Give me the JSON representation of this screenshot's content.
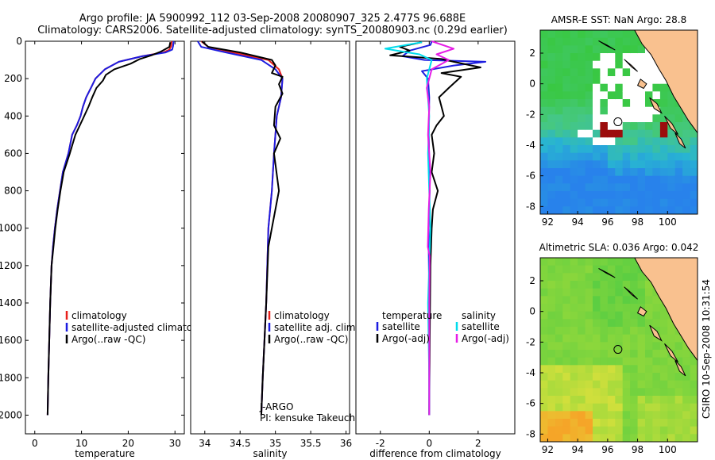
{
  "title_line1": "Argo profile: JA 5900992_112 03-Sep-2008 20080907_325 2.477S 96.688E",
  "title_line2": "Climatology: CARS2006. Satellite-adjusted climatology: synTS_20080903.nc (0.29d earlier)",
  "side_text": "CSIRO 10-Sep-2008 10:31:54",
  "colors": {
    "red": "#e8201c",
    "blue": "#1c1ce0",
    "black": "#000000",
    "cyan": "#00dcec",
    "magenta": "#e61ce6",
    "land": "#f9c18f"
  },
  "chart_data": [
    {
      "id": "temperature",
      "type": "line",
      "xlabel": "temperature",
      "ylabel": "",
      "xlim": [
        -2,
        32
      ],
      "ylim": [
        2100,
        0
      ],
      "xticks": [
        0,
        10,
        20,
        30
      ],
      "xtick_labels": [
        "0",
        "10",
        "20",
        "30"
      ],
      "yticks": [
        0,
        200,
        400,
        600,
        800,
        1000,
        1200,
        1400,
        1600,
        1800,
        2000
      ],
      "ytick_labels": [
        "0",
        "200",
        "400",
        "600",
        "800",
        "1000",
        "1200",
        "1400",
        "1600",
        "1800",
        "2000"
      ],
      "legend": [
        "climatology",
        "satellite-adjusted climatology",
        "Argo(..raw -QC)"
      ],
      "annotation": [],
      "series": [
        {
          "name": "climatology",
          "color": "red",
          "x": [
            29.3,
            29.2,
            28.8,
            27.5,
            23,
            18,
            15,
            13,
            12,
            11,
            10.3,
            9.8,
            9,
            8,
            7.2,
            6,
            5.4,
            4.8,
            4.3,
            3.9,
            3.6,
            3.3,
            3.1,
            2.9,
            2.75
          ],
          "y": [
            0,
            25,
            45,
            60,
            80,
            110,
            150,
            200,
            250,
            300,
            350,
            400,
            450,
            500,
            600,
            700,
            800,
            900,
            1000,
            1100,
            1200,
            1400,
            1600,
            1800,
            2000
          ]
        },
        {
          "name": "satellite-adjusted climatology",
          "color": "blue",
          "x": [
            29.7,
            29.6,
            29.4,
            28,
            23,
            18,
            15,
            13,
            12,
            11,
            10.3,
            9.8,
            9,
            8,
            7.2,
            6,
            5.4,
            4.8,
            4.3,
            3.9,
            3.6,
            3.3,
            3.1,
            2.9,
            2.75
          ],
          "y": [
            0,
            25,
            45,
            60,
            80,
            110,
            150,
            200,
            250,
            300,
            350,
            400,
            450,
            500,
            600,
            700,
            800,
            900,
            1000,
            1100,
            1200,
            1400,
            1600,
            1800,
            2000
          ]
        },
        {
          "name": "Argo(..raw -QC)",
          "color": "black",
          "x": [
            29,
            28.8,
            27,
            25,
            22.5,
            20.5,
            17,
            15.2,
            14.6,
            13.2,
            12.3,
            11.5,
            10.2,
            8.7,
            7.5,
            6.2,
            5.5,
            4.9,
            4.4,
            4,
            3.6,
            3.3,
            3.1,
            2.9,
            2.75
          ],
          "y": [
            5,
            30,
            55,
            75,
            95,
            120,
            150,
            180,
            210,
            250,
            300,
            350,
            420,
            500,
            600,
            700,
            800,
            900,
            1000,
            1100,
            1200,
            1400,
            1600,
            1800,
            2000
          ]
        }
      ]
    },
    {
      "id": "salinity",
      "type": "line",
      "xlabel": "salinity",
      "ylabel": "",
      "xlim": [
        33.8,
        36.05
      ],
      "ylim": [
        2100,
        0
      ],
      "xticks": [
        34,
        34.5,
        35,
        35.5,
        36
      ],
      "xtick_labels": [
        "34",
        "34.5",
        "35",
        "35.5",
        "36"
      ],
      "yticks": [],
      "ytick_labels": [],
      "legend": [
        "climatology",
        "satellite adj. clim.",
        "Argo(..raw -QC)"
      ],
      "annotation": [
        "J-ARGO",
        "PI: kensuke Takeuchi"
      ],
      "series": [
        {
          "name": "climatology",
          "color": "red",
          "x": [
            33.95,
            34.05,
            34.4,
            34.9,
            35.05,
            35.1,
            35.08,
            35.02,
            34.98,
            34.95,
            34.9,
            34.87,
            34.82,
            34.8
          ],
          "y": [
            0,
            30,
            60,
            100,
            150,
            200,
            300,
            400,
            600,
            800,
            1000,
            1400,
            1800,
            2000
          ]
        },
        {
          "name": "satellite adj. clim.",
          "color": "blue",
          "x": [
            33.9,
            33.95,
            34.3,
            34.8,
            35.0,
            35.1,
            35.08,
            35.02,
            34.98,
            34.95,
            34.9,
            34.87,
            34.82,
            34.8
          ],
          "y": [
            0,
            30,
            60,
            100,
            150,
            200,
            300,
            400,
            600,
            800,
            1000,
            1400,
            1800,
            2000
          ]
        },
        {
          "name": "Argo(..raw -QC)",
          "color": "black",
          "x": [
            33.96,
            34.05,
            34.5,
            34.95,
            35.0,
            34.95,
            35.1,
            35.05,
            35.1,
            35.0,
            34.98,
            35.07,
            34.98,
            35.05,
            34.95,
            34.9,
            34.87,
            34.82,
            34.8
          ],
          "y": [
            0,
            30,
            60,
            100,
            130,
            170,
            190,
            230,
            280,
            350,
            450,
            520,
            600,
            800,
            1000,
            1100,
            1400,
            1800,
            2000
          ]
        }
      ]
    },
    {
      "id": "difference",
      "type": "line",
      "xlabel": "difference from climatology",
      "ylabel": "",
      "xlim": [
        -3,
        3.5
      ],
      "ylim": [
        2100,
        0
      ],
      "xticks": [
        -2,
        0,
        2
      ],
      "xtick_labels": [
        "-2",
        "0",
        "2"
      ],
      "yticks": [],
      "ytick_labels": [],
      "legend_titles": [
        "temperature",
        "salinity"
      ],
      "legend": [
        "satellite",
        "Argo(-adj)",
        "satellite",
        "Argo(-adj)"
      ],
      "annotation": [],
      "series": [
        {
          "name": "temperature satellite",
          "color": "blue",
          "x": [
            0.1,
            0.05,
            -0.8,
            -1.1,
            -0.2,
            2.3,
            1.0,
            -0.3,
            -0.05,
            0,
            -0.02,
            0.02,
            -0.03,
            0,
            0,
            0
          ],
          "y": [
            0,
            20,
            50,
            80,
            100,
            110,
            130,
            160,
            200,
            300,
            500,
            800,
            1000,
            1400,
            1800,
            2000
          ]
        },
        {
          "name": "temperature Argo(-adj)",
          "color": "black",
          "x": [
            -0.3,
            -1.2,
            -0.8,
            -1.6,
            0.5,
            1.0,
            2.1,
            0.5,
            1.3,
            0.8,
            0.4,
            0.6,
            0.3,
            0.1,
            0.2,
            0.1,
            0.35,
            0.15,
            0.1,
            0.05,
            0.02,
            0
          ],
          "y": [
            5,
            30,
            50,
            75,
            95,
            110,
            140,
            170,
            190,
            250,
            300,
            400,
            450,
            500,
            600,
            700,
            800,
            900,
            1000,
            1200,
            1600,
            2000
          ]
        },
        {
          "name": "salinity satellite",
          "color": "cyan",
          "x": [
            -0.3,
            -1.8,
            -0.4,
            0.1,
            -0.1,
            0,
            -0.05,
            0.05,
            -0.05,
            0,
            0
          ],
          "y": [
            5,
            40,
            70,
            100,
            200,
            400,
            600,
            1000,
            1400,
            1800,
            2000
          ]
        },
        {
          "name": "salinity Argo(-adj)",
          "color": "magenta",
          "x": [
            0.1,
            1.0,
            0.3,
            0.8,
            0.1,
            -0.1,
            0,
            -0.05,
            0.05,
            -0.02,
            -0.06,
            0.02,
            0,
            0,
            0
          ],
          "y": [
            0,
            40,
            70,
            100,
            150,
            250,
            350,
            500,
            700,
            900,
            1100,
            1150,
            1400,
            1800,
            2000
          ]
        }
      ]
    },
    {
      "id": "sst_map",
      "type": "heatmap",
      "title": "AMSR-E SST: NaN Argo: 28.8",
      "xlim": [
        91.5,
        102
      ],
      "ylim": [
        -8.5,
        3.5
      ],
      "xticks": [
        92,
        94,
        96,
        98,
        100
      ],
      "xtick_labels": [
        "92",
        "94",
        "96",
        "98",
        "100"
      ],
      "yticks": [
        2,
        0,
        -2,
        -4,
        -6,
        -8
      ],
      "ytick_labels": [
        "2",
        "0",
        "-2",
        "-4",
        "-6",
        "-8"
      ],
      "argo_position": [
        96.688,
        -2.477
      ]
    },
    {
      "id": "sla_map",
      "type": "heatmap",
      "title": "Altimetric SLA: 0.036 Argo: 0.042",
      "xlim": [
        91.5,
        102
      ],
      "ylim": [
        -8.5,
        3.5
      ],
      "xticks": [
        92,
        94,
        96,
        98,
        100
      ],
      "xtick_labels": [
        "92",
        "94",
        "96",
        "98",
        "100"
      ],
      "yticks": [
        2,
        0,
        -2,
        -4,
        -6,
        -8
      ],
      "ytick_labels": [
        "2",
        "0",
        "-2",
        "-4",
        "-6",
        "-8"
      ],
      "argo_position": [
        96.688,
        -2.477
      ]
    }
  ]
}
